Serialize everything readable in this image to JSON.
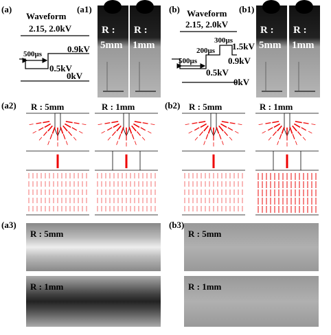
{
  "panel_a": {
    "label": "(a)",
    "title": "Waveform",
    "levels": [
      "2.15, 2.0kV",
      "0.9kV",
      "0.5kV",
      "0kV"
    ],
    "durations": [
      "500μs"
    ]
  },
  "panel_a1": {
    "label": "(a1)",
    "images": [
      {
        "r": "R :",
        "size": "5mm"
      },
      {
        "r": "R :",
        "size": "1mm"
      }
    ]
  },
  "panel_b": {
    "label": "(b)",
    "title": "Waveform",
    "levels": [
      "2.15, 2.0kV",
      "1.5kV",
      "0.9kV",
      "0.5kV",
      "0kV"
    ],
    "durations": [
      "300μs",
      "200μs",
      "500μs"
    ]
  },
  "panel_b1": {
    "label": "(b1)",
    "images": [
      {
        "r": "R :",
        "size": "5mm"
      },
      {
        "r": "R :",
        "size": "1mm"
      }
    ]
  },
  "panel_a2": {
    "label": "(a2)",
    "titles": [
      "R : 5mm",
      "R : 1mm"
    ]
  },
  "panel_b2": {
    "label": "(b2)",
    "titles": [
      "R : 5mm",
      "R : 1mm"
    ]
  },
  "panel_a3": {
    "label": "(a3)",
    "captions": [
      "R : 5mm",
      "R : 1mm"
    ]
  },
  "panel_b3": {
    "label": "(b3)",
    "captions": [
      "R : 5mm",
      "R : 1mm"
    ]
  }
}
